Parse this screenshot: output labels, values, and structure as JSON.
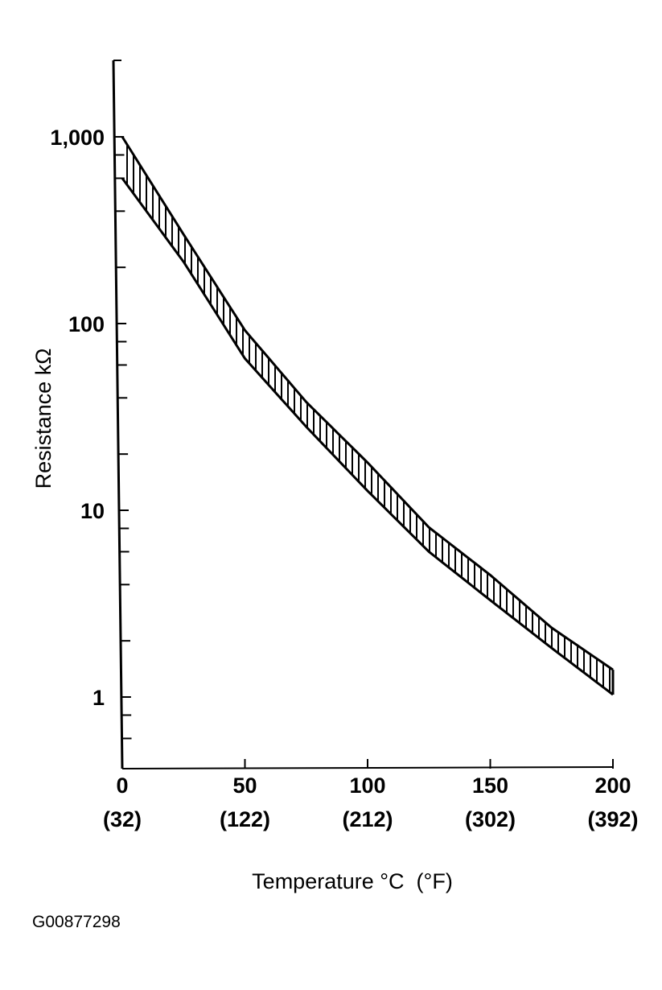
{
  "chart_data": {
    "type": "area",
    "title": "",
    "xlabel": "Temperature °C  (°F)",
    "ylabel": "Resistance kΩ",
    "yscale": "log",
    "xlim": [
      0,
      200
    ],
    "ylim": [
      0.4,
      2500
    ],
    "grid": false,
    "x_ticks": [
      {
        "value": 0,
        "label": "0",
        "sublabel": "(32)"
      },
      {
        "value": 50,
        "label": "50",
        "sublabel": "(122)"
      },
      {
        "value": 100,
        "label": "100",
        "sublabel": "(212)"
      },
      {
        "value": 150,
        "label": "150",
        "sublabel": "(302)"
      },
      {
        "value": 200,
        "label": "200",
        "sublabel": "(392)"
      }
    ],
    "y_ticks": [
      {
        "value": 1000,
        "label": "1,000"
      },
      {
        "value": 100,
        "label": "100"
      },
      {
        "value": 10,
        "label": "10"
      },
      {
        "value": 1,
        "label": "1"
      }
    ],
    "x": [
      0,
      25,
      50,
      75,
      100,
      125,
      150,
      175,
      200
    ],
    "series": [
      {
        "role": "upper bound",
        "values": [
          1000,
          300,
          92,
          38,
          18,
          8.1,
          4.5,
          2.35,
          1.4
        ]
      },
      {
        "role": "lower bound",
        "values": [
          600,
          214,
          65,
          28,
          12.7,
          6.0,
          3.3,
          1.83,
          1.03
        ]
      }
    ],
    "fill": "vertical hatching"
  },
  "figure_id": "G00877298"
}
